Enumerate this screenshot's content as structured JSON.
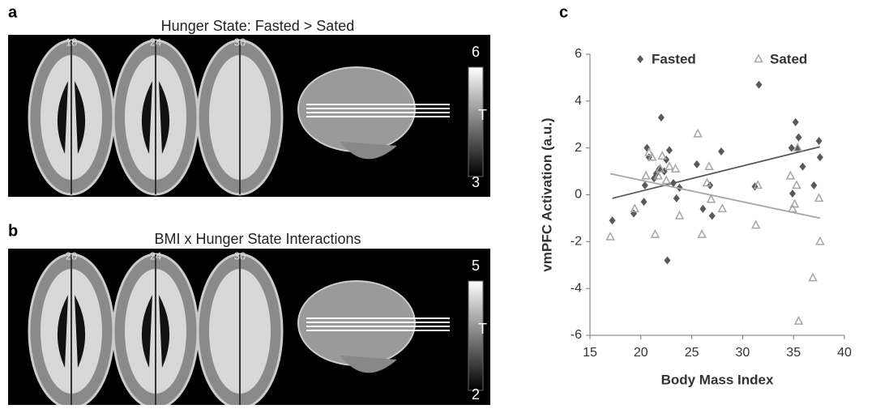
{
  "panel_a": {
    "label": "a",
    "title": "Hunger State: Fasted > Sated",
    "slices": [
      18,
      24,
      30
    ],
    "colorbar_max": 6,
    "colorbar_min": 3,
    "colorbar_label": "T"
  },
  "panel_b": {
    "label": "b",
    "title": "BMI x Hunger State Interactions",
    "slices": [
      20,
      24,
      30
    ],
    "colorbar_max": 5,
    "colorbar_min": 2,
    "colorbar_label": "T"
  },
  "panel_c": {
    "label": "c"
  },
  "chart_data": {
    "type": "scatter",
    "x_label": "Body Mass Index",
    "y_label": "vmPFC Activation (a.u.)",
    "xlim": [
      15,
      40
    ],
    "xticks": [
      15,
      20,
      25,
      30,
      35,
      40
    ],
    "ylim": [
      -6,
      6
    ],
    "yticks": [
      -6,
      -4,
      -2,
      0,
      2,
      4,
      6
    ],
    "grid": false,
    "series": [
      {
        "name": "Fasted",
        "color": "#595959",
        "marker": "diamond",
        "x": [
          17.2,
          19.3,
          20.3,
          20.4,
          20.6,
          20.8,
          21.3,
          21.5,
          21.8,
          22.0,
          22.3,
          22.5,
          22.6,
          22.8,
          23.2,
          23.5,
          23.8,
          25.5,
          26.1,
          26.8,
          27.0,
          27.9,
          31.2,
          31.6,
          34.8,
          34.9,
          35.2,
          35.4,
          35.5,
          35.9,
          37.0,
          37.5,
          37.6
        ],
        "values": [
          -1.1,
          -0.8,
          -0.3,
          0.4,
          2.0,
          1.6,
          0.7,
          0.9,
          1.1,
          3.3,
          1.0,
          1.5,
          -2.8,
          1.9,
          0.5,
          -0.15,
          0.3,
          1.3,
          -0.6,
          0.4,
          -0.9,
          1.85,
          0.35,
          4.7,
          2.0,
          0.05,
          3.1,
          1.95,
          2.45,
          1.2,
          0.4,
          2.3,
          1.6
        ],
        "trend_x": [
          17.2,
          37.6
        ],
        "trend_y": [
          -0.15,
          2.05
        ]
      },
      {
        "name": "Sated",
        "color": "#a6a6a6",
        "marker": "triangle",
        "x": [
          17.0,
          19.4,
          20.5,
          20.8,
          21.1,
          21.4,
          21.7,
          21.9,
          22.1,
          22.5,
          22.8,
          23.4,
          23.8,
          25.6,
          26.0,
          26.5,
          26.7,
          26.9,
          28.0,
          31.3,
          31.5,
          34.7,
          34.9,
          35.1,
          35.3,
          35.4,
          35.5,
          36.9,
          37.5,
          37.6
        ],
        "values": [
          -1.8,
          -0.6,
          0.8,
          1.8,
          1.6,
          -1.7,
          0.8,
          1.1,
          1.65,
          0.6,
          1.2,
          1.1,
          -0.9,
          2.6,
          -1.7,
          0.5,
          1.2,
          -0.2,
          -0.6,
          -1.3,
          0.4,
          0.8,
          -0.6,
          -0.4,
          0.4,
          2.0,
          -5.4,
          -3.55,
          -0.15,
          -2.0
        ],
        "trend_x": [
          17.0,
          37.6
        ],
        "trend_y": [
          0.9,
          -1.0
        ]
      }
    ]
  }
}
